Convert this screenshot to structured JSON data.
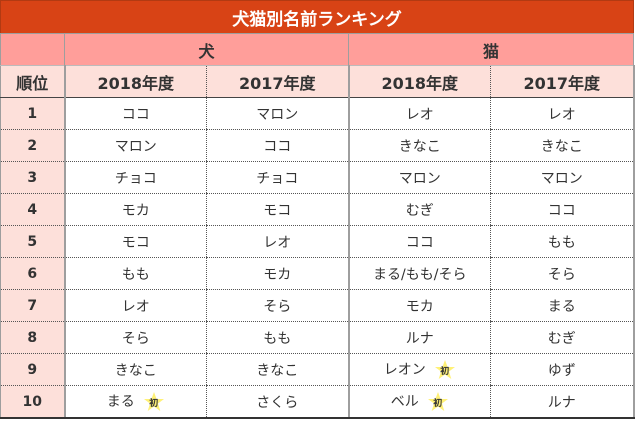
{
  "title": "犬猫別名前ランキング",
  "groups": {
    "rank_header": "",
    "dog": "犬",
    "cat": "猫"
  },
  "years": {
    "rank": "順位",
    "dog_2018": "2018年度",
    "dog_2017": "2017年度",
    "cat_2018": "2018年度",
    "cat_2017": "2017年度"
  },
  "badge_label": "初",
  "colors": {
    "title_bg": "#d84315",
    "group_bg": "#ff9e9a",
    "subheader_bg": "#fde0da",
    "badge_star": "#fff176"
  },
  "rows": [
    {
      "rank": "1",
      "dog_2018": "ココ",
      "dog_2017": "マロン",
      "cat_2018": "レオ",
      "cat_2017": "レオ"
    },
    {
      "rank": "2",
      "dog_2018": "マロン",
      "dog_2017": "ココ",
      "cat_2018": "きなこ",
      "cat_2017": "きなこ"
    },
    {
      "rank": "3",
      "dog_2018": "チョコ",
      "dog_2017": "チョコ",
      "cat_2018": "マロン",
      "cat_2017": "マロン"
    },
    {
      "rank": "4",
      "dog_2018": "モカ",
      "dog_2017": "モコ",
      "cat_2018": "むぎ",
      "cat_2017": "ココ"
    },
    {
      "rank": "5",
      "dog_2018": "モコ",
      "dog_2017": "レオ",
      "cat_2018": "ココ",
      "cat_2017": "もも"
    },
    {
      "rank": "6",
      "dog_2018": "もも",
      "dog_2017": "モカ",
      "cat_2018": "まる/もも/そら",
      "cat_2017": "そら"
    },
    {
      "rank": "7",
      "dog_2018": "レオ",
      "dog_2017": "そら",
      "cat_2018": "モカ",
      "cat_2017": "まる"
    },
    {
      "rank": "8",
      "dog_2018": "そら",
      "dog_2017": "もも",
      "cat_2018": "ルナ",
      "cat_2017": "むぎ"
    },
    {
      "rank": "9",
      "dog_2018": "きなこ",
      "dog_2017": "きなこ",
      "cat_2018": "レオン",
      "cat_2017": "ゆず",
      "cat_2018_new": true
    },
    {
      "rank": "10",
      "dog_2018": "まる",
      "dog_2017": "さくら",
      "cat_2018": "ベル",
      "cat_2017": "ルナ",
      "dog_2018_new": true,
      "cat_2018_new": true
    }
  ]
}
